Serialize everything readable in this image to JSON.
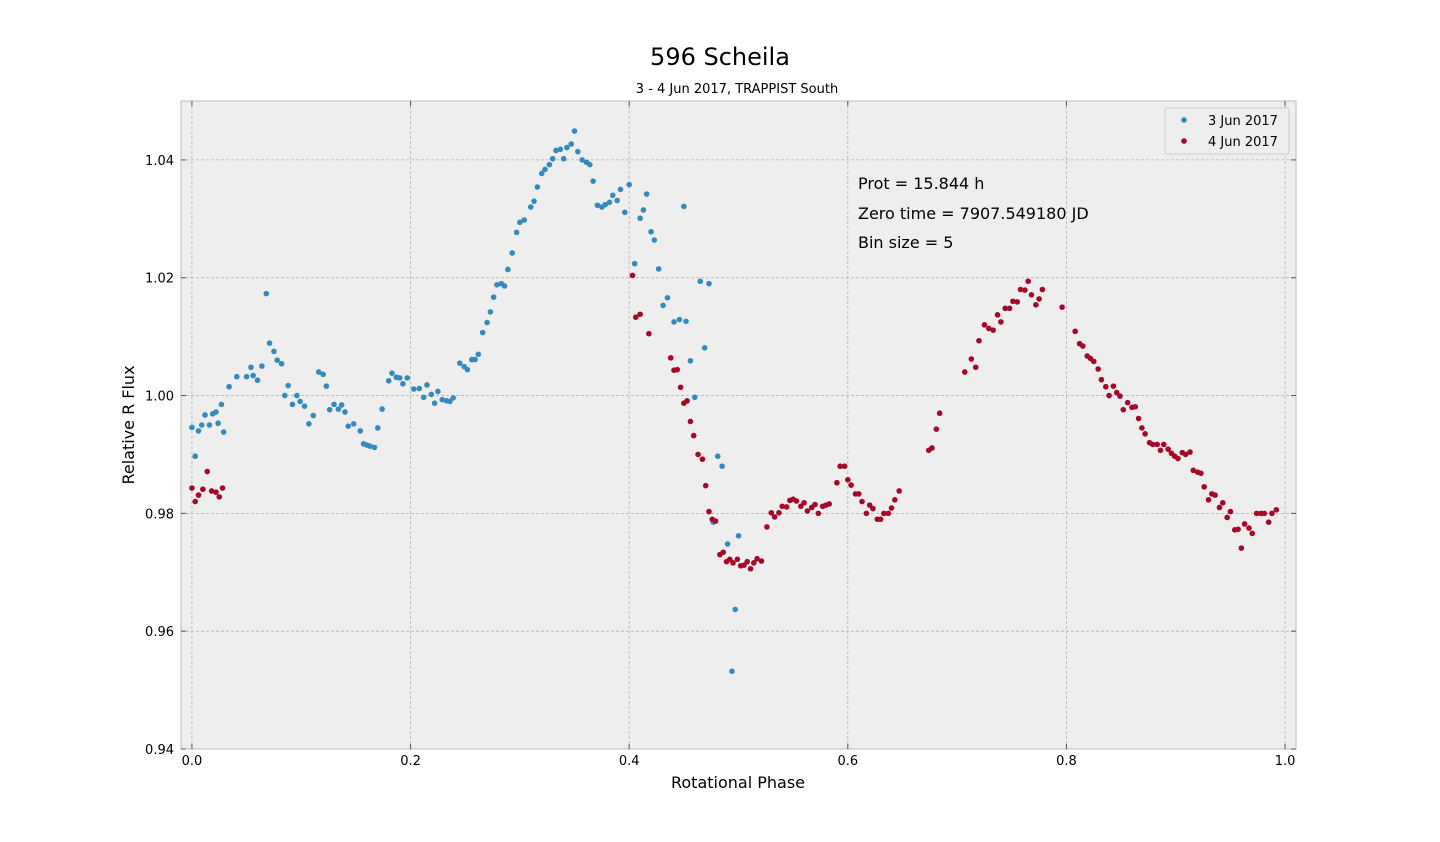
{
  "chart_data": {
    "type": "scatter",
    "title": "596 Scheila",
    "subtitle": "3 - 4 Jun 2017, TRAPPIST South",
    "xlabel": "Rotational Phase",
    "ylabel": "Relative R Flux",
    "xlim": [
      -0.01,
      1.01
    ],
    "ylim": [
      0.94,
      1.05
    ],
    "xticks": [
      "0.0",
      "0.2",
      "0.4",
      "0.6",
      "0.8",
      "1.0"
    ],
    "xtick_values": [
      0.0,
      0.2,
      0.4,
      0.6,
      0.8,
      1.0
    ],
    "yticks": [
      "0.94",
      "0.96",
      "0.98",
      "1.00",
      "1.02",
      "1.04"
    ],
    "ytick_values": [
      0.94,
      0.96,
      0.98,
      1.0,
      1.02,
      1.04
    ],
    "grid": true,
    "legend_position": "top-right",
    "annotations": [
      "Prot = 15.844 h",
      "Zero time = 7907.549180 JD",
      "Bin size = 5"
    ],
    "series": [
      {
        "name": "3 Jun 2017",
        "color": "#348abd",
        "points": [
          [
            0.0,
            0.9946
          ],
          [
            0.003,
            0.9897
          ],
          [
            0.006,
            0.994
          ],
          [
            0.009,
            0.995
          ],
          [
            0.012,
            0.9967
          ],
          [
            0.016,
            0.995
          ],
          [
            0.019,
            0.9969
          ],
          [
            0.022,
            0.9972
          ],
          [
            0.024,
            0.9953
          ],
          [
            0.027,
            0.9985
          ],
          [
            0.029,
            0.9938
          ],
          [
            0.034,
            1.0015
          ],
          [
            0.041,
            1.0032
          ],
          [
            0.05,
            1.0032
          ],
          [
            0.054,
            1.0048
          ],
          [
            0.056,
            1.0034
          ],
          [
            0.06,
            1.0026
          ],
          [
            0.064,
            1.005
          ],
          [
            0.068,
            1.0173
          ],
          [
            0.071,
            1.0089
          ],
          [
            0.075,
            1.0075
          ],
          [
            0.078,
            1.006
          ],
          [
            0.082,
            1.0054
          ],
          [
            0.085,
            1.0
          ],
          [
            0.088,
            1.0017
          ],
          [
            0.092,
            0.9985
          ],
          [
            0.096,
            1.0
          ],
          [
            0.099,
            0.999
          ],
          [
            0.103,
            0.9982
          ],
          [
            0.107,
            0.9952
          ],
          [
            0.111,
            0.9966
          ],
          [
            0.116,
            1.004
          ],
          [
            0.12,
            1.0036
          ],
          [
            0.123,
            1.0016
          ],
          [
            0.126,
            0.9976
          ],
          [
            0.13,
            0.9985
          ],
          [
            0.134,
            0.9977
          ],
          [
            0.137,
            0.9984
          ],
          [
            0.14,
            0.9972
          ],
          [
            0.143,
            0.9948
          ],
          [
            0.148,
            0.9952
          ],
          [
            0.154,
            0.994
          ],
          [
            0.157,
            0.9918
          ],
          [
            0.16,
            0.9916
          ],
          [
            0.163,
            0.9914
          ],
          [
            0.167,
            0.9912
          ],
          [
            0.17,
            0.9945
          ],
          [
            0.174,
            0.9977
          ],
          [
            0.18,
            1.0025
          ],
          [
            0.183,
            1.0038
          ],
          [
            0.187,
            1.0031
          ],
          [
            0.19,
            1.003
          ],
          [
            0.193,
            1.002
          ],
          [
            0.197,
            1.003
          ],
          [
            0.203,
            1.0011
          ],
          [
            0.208,
            1.0012
          ],
          [
            0.212,
            0.9997
          ],
          [
            0.215,
            1.0018
          ],
          [
            0.219,
            1.0002
          ],
          [
            0.222,
            0.9987
          ],
          [
            0.225,
            1.0007
          ],
          [
            0.229,
            0.9993
          ],
          [
            0.233,
            0.9991
          ],
          [
            0.236,
            0.999
          ],
          [
            0.239,
            0.9996
          ],
          [
            0.245,
            1.0055
          ],
          [
            0.249,
            1.0049
          ],
          [
            0.252,
            1.0044
          ],
          [
            0.256,
            1.0061
          ],
          [
            0.259,
            1.0061
          ],
          [
            0.262,
            1.007
          ],
          [
            0.266,
            1.0107
          ],
          [
            0.27,
            1.0124
          ],
          [
            0.273,
            1.0142
          ],
          [
            0.276,
            1.0167
          ],
          [
            0.279,
            1.0188
          ],
          [
            0.283,
            1.019
          ],
          [
            0.286,
            1.0186
          ],
          [
            0.289,
            1.0214
          ],
          [
            0.293,
            1.0242
          ],
          [
            0.297,
            1.0277
          ],
          [
            0.3,
            1.0294
          ],
          [
            0.304,
            1.0298
          ],
          [
            0.31,
            1.032
          ],
          [
            0.313,
            1.033
          ],
          [
            0.316,
            1.0354
          ],
          [
            0.32,
            1.0377
          ],
          [
            0.323,
            1.0384
          ],
          [
            0.327,
            1.0392
          ],
          [
            0.33,
            1.0402
          ],
          [
            0.333,
            1.0416
          ],
          [
            0.337,
            1.0418
          ],
          [
            0.34,
            1.0402
          ],
          [
            0.343,
            1.0421
          ],
          [
            0.347,
            1.0427
          ],
          [
            0.35,
            1.0449
          ],
          [
            0.353,
            1.0414
          ],
          [
            0.357,
            1.04
          ],
          [
            0.361,
            1.0396
          ],
          [
            0.364,
            1.0392
          ],
          [
            0.367,
            1.0364
          ],
          [
            0.371,
            1.0323
          ],
          [
            0.375,
            1.032
          ],
          [
            0.378,
            1.0324
          ],
          [
            0.382,
            1.0328
          ],
          [
            0.385,
            1.034
          ],
          [
            0.389,
            1.0331
          ],
          [
            0.392,
            1.035
          ],
          [
            0.396,
            1.0311
          ],
          [
            0.4,
            1.0358
          ],
          [
            0.405,
            1.0224
          ],
          [
            0.41,
            1.0301
          ],
          [
            0.413,
            1.0315
          ],
          [
            0.416,
            1.0342
          ],
          [
            0.42,
            1.0278
          ],
          [
            0.423,
            1.0264
          ],
          [
            0.427,
            1.0215
          ],
          [
            0.431,
            1.0153
          ],
          [
            0.435,
            1.0166
          ],
          [
            0.441,
            1.0125
          ],
          [
            0.446,
            1.0129
          ],
          [
            0.45,
            1.0321
          ],
          [
            0.452,
            1.0126
          ],
          [
            0.456,
            1.0059
          ],
          [
            0.46,
            0.9997
          ],
          [
            0.465,
            1.0194
          ],
          [
            0.469,
            1.0081
          ],
          [
            0.473,
            1.019
          ],
          [
            0.477,
            0.9785
          ],
          [
            0.481,
            0.9897
          ],
          [
            0.485,
            0.988
          ],
          [
            0.49,
            0.9748
          ],
          [
            0.494,
            0.9532
          ],
          [
            0.497,
            0.9637
          ],
          [
            0.5,
            0.9762
          ]
        ]
      },
      {
        "name": "4 Jun 2017",
        "color": "#a60628",
        "points": [
          [
            0.0,
            0.9843
          ],
          [
            0.003,
            0.982
          ],
          [
            0.006,
            0.9831
          ],
          [
            0.01,
            0.9841
          ],
          [
            0.014,
            0.9871
          ],
          [
            0.018,
            0.9838
          ],
          [
            0.022,
            0.9836
          ],
          [
            0.025,
            0.9828
          ],
          [
            0.028,
            0.9843
          ],
          [
            0.403,
            1.0204
          ],
          [
            0.406,
            1.0133
          ],
          [
            0.41,
            1.0138
          ],
          [
            0.418,
            1.0105
          ],
          [
            0.438,
            1.0064
          ],
          [
            0.441,
            1.0043
          ],
          [
            0.444,
            1.0044
          ],
          [
            0.447,
            1.0014
          ],
          [
            0.45,
            0.9987
          ],
          [
            0.453,
            0.9991
          ],
          [
            0.456,
            0.9956
          ],
          [
            0.459,
            0.9932
          ],
          [
            0.463,
            0.99
          ],
          [
            0.467,
            0.9892
          ],
          [
            0.47,
            0.9847
          ],
          [
            0.473,
            0.9803
          ],
          [
            0.476,
            0.979
          ],
          [
            0.479,
            0.9787
          ],
          [
            0.483,
            0.973
          ],
          [
            0.486,
            0.9734
          ],
          [
            0.489,
            0.9718
          ],
          [
            0.492,
            0.9722
          ],
          [
            0.495,
            0.9716
          ],
          [
            0.499,
            0.9722
          ],
          [
            0.502,
            0.9711
          ],
          [
            0.505,
            0.9712
          ],
          [
            0.508,
            0.9718
          ],
          [
            0.511,
            0.9706
          ],
          [
            0.514,
            0.9716
          ],
          [
            0.517,
            0.9723
          ],
          [
            0.521,
            0.9719
          ],
          [
            0.526,
            0.9777
          ],
          [
            0.53,
            0.9801
          ],
          [
            0.533,
            0.9794
          ],
          [
            0.537,
            0.9801
          ],
          [
            0.54,
            0.9812
          ],
          [
            0.544,
            0.9811
          ],
          [
            0.547,
            0.9822
          ],
          [
            0.55,
            0.9824
          ],
          [
            0.553,
            0.9821
          ],
          [
            0.557,
            0.9812
          ],
          [
            0.56,
            0.9818
          ],
          [
            0.563,
            0.9804
          ],
          [
            0.567,
            0.981
          ],
          [
            0.57,
            0.9815
          ],
          [
            0.573,
            0.98
          ],
          [
            0.577,
            0.9812
          ],
          [
            0.58,
            0.9814
          ],
          [
            0.583,
            0.9816
          ],
          [
            0.59,
            0.9852
          ],
          [
            0.593,
            0.988
          ],
          [
            0.597,
            0.988
          ],
          [
            0.6,
            0.9857
          ],
          [
            0.603,
            0.9848
          ],
          [
            0.607,
            0.9833
          ],
          [
            0.61,
            0.9833
          ],
          [
            0.613,
            0.982
          ],
          [
            0.617,
            0.98
          ],
          [
            0.62,
            0.9814
          ],
          [
            0.623,
            0.9808
          ],
          [
            0.627,
            0.979
          ],
          [
            0.63,
            0.979
          ],
          [
            0.633,
            0.98
          ],
          [
            0.637,
            0.98
          ],
          [
            0.64,
            0.9809
          ],
          [
            0.643,
            0.9823
          ],
          [
            0.647,
            0.9838
          ],
          [
            0.674,
            0.9907
          ],
          [
            0.677,
            0.9911
          ],
          [
            0.681,
            0.9943
          ],
          [
            0.684,
            0.997
          ],
          [
            0.707,
            1.004
          ],
          [
            0.713,
            1.0062
          ],
          [
            0.717,
            1.0048
          ],
          [
            0.72,
            1.0093
          ],
          [
            0.725,
            1.012
          ],
          [
            0.729,
            1.0114
          ],
          [
            0.733,
            1.0111
          ],
          [
            0.737,
            1.0137
          ],
          [
            0.74,
            1.0125
          ],
          [
            0.744,
            1.0148
          ],
          [
            0.748,
            1.0148
          ],
          [
            0.751,
            1.016
          ],
          [
            0.755,
            1.0159
          ],
          [
            0.758,
            1.018
          ],
          [
            0.762,
            1.0179
          ],
          [
            0.765,
            1.0194
          ],
          [
            0.768,
            1.0171
          ],
          [
            0.772,
            1.0154
          ],
          [
            0.775,
            1.0164
          ],
          [
            0.778,
            1.018
          ],
          [
            0.796,
            1.015
          ],
          [
            0.808,
            1.0109
          ],
          [
            0.812,
            1.0088
          ],
          [
            0.815,
            1.0084
          ],
          [
            0.819,
            1.0067
          ],
          [
            0.822,
            1.0063
          ],
          [
            0.825,
            1.0058
          ],
          [
            0.829,
            1.0045
          ],
          [
            0.832,
            1.0027
          ],
          [
            0.836,
            1.0015
          ],
          [
            0.839,
            1.0
          ],
          [
            0.843,
            1.0016
          ],
          [
            0.846,
            1.0005
          ],
          [
            0.849,
            0.9999
          ],
          [
            0.852,
            0.9976
          ],
          [
            0.856,
            0.9988
          ],
          [
            0.86,
            0.998
          ],
          [
            0.863,
            0.9981
          ],
          [
            0.866,
            0.9961
          ],
          [
            0.869,
            0.9945
          ],
          [
            0.872,
            0.9935
          ],
          [
            0.876,
            0.992
          ],
          [
            0.879,
            0.9917
          ],
          [
            0.883,
            0.9917
          ],
          [
            0.886,
            0.9907
          ],
          [
            0.889,
            0.9917
          ],
          [
            0.893,
            0.9909
          ],
          [
            0.896,
            0.9902
          ],
          [
            0.899,
            0.9897
          ],
          [
            0.902,
            0.9893
          ],
          [
            0.906,
            0.9903
          ],
          [
            0.909,
            0.99
          ],
          [
            0.913,
            0.9904
          ],
          [
            0.916,
            0.9873
          ],
          [
            0.92,
            0.987
          ],
          [
            0.923,
            0.9868
          ],
          [
            0.926,
            0.9845
          ],
          [
            0.93,
            0.9823
          ],
          [
            0.933,
            0.9833
          ],
          [
            0.936,
            0.9831
          ],
          [
            0.94,
            0.981
          ],
          [
            0.943,
            0.9818
          ],
          [
            0.947,
            0.9793
          ],
          [
            0.95,
            0.9803
          ],
          [
            0.954,
            0.9772
          ],
          [
            0.957,
            0.9773
          ],
          [
            0.96,
            0.9741
          ],
          [
            0.963,
            0.9782
          ],
          [
            0.967,
            0.9775
          ],
          [
            0.97,
            0.9766
          ],
          [
            0.974,
            0.98
          ],
          [
            0.978,
            0.98
          ],
          [
            0.981,
            0.98
          ],
          [
            0.985,
            0.9785
          ],
          [
            0.988,
            0.98
          ],
          [
            0.992,
            0.9806
          ]
        ]
      }
    ]
  }
}
